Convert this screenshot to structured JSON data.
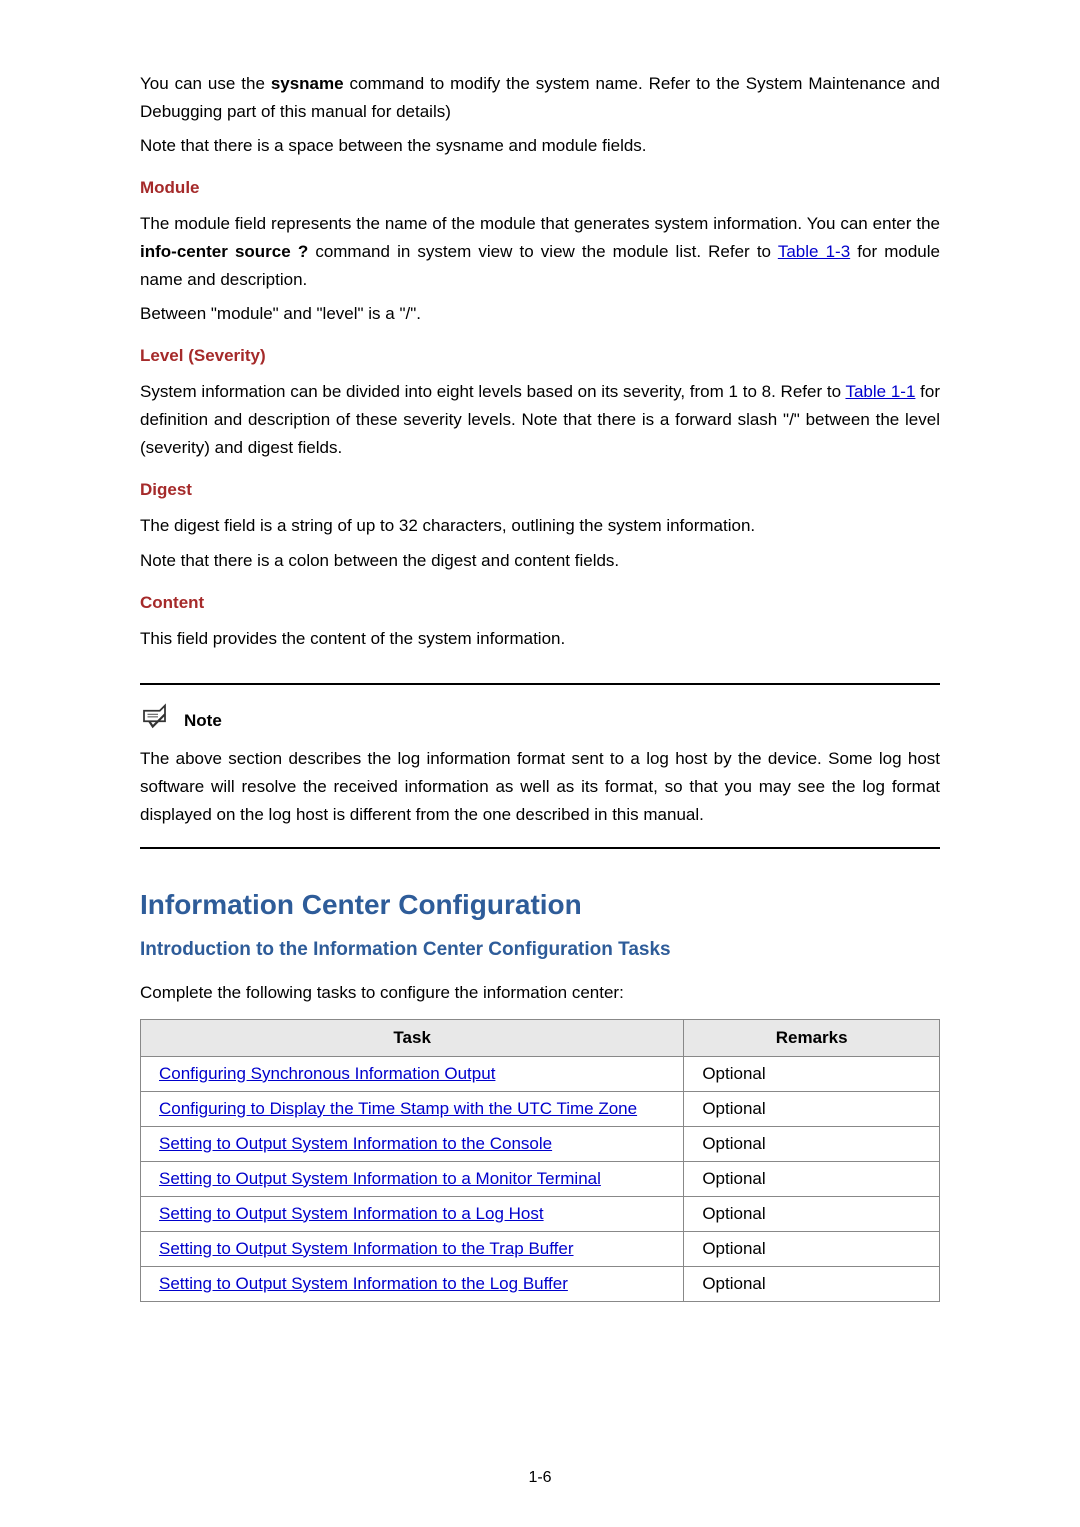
{
  "intro": {
    "p1_a": "You can use the ",
    "p1_b": "sysname",
    "p1_c": " command to modify the system name. Refer to the System Maintenance and Debugging part of this manual for details)",
    "p2": "Note that there is a space between the sysname and module fields."
  },
  "module": {
    "heading": "Module",
    "p1_a": "The module field represents the name of the module that generates system information. You can enter the ",
    "p1_b": "info-center source ?",
    "p1_c": " command in system view to view the module list. Refer to ",
    "p1_link": "Table 1-3",
    "p1_d": " for module name and description.",
    "p2": "Between \"module\" and \"level\" is a \"/\"."
  },
  "level": {
    "heading": "Level (Severity)",
    "p1_a": "System information can be divided into eight levels based on its severity, from 1 to 8. Refer to ",
    "p1_link": "Table 1-1",
    "p1_b": " for definition and description of these severity levels. Note that there is a forward slash \"/\" between the level (severity) and digest fields."
  },
  "digest": {
    "heading": "Digest",
    "p1": "The digest field is a string of up to 32 characters, outlining the system information.",
    "p2": "Note that there is a colon between the digest and content fields."
  },
  "content": {
    "heading": "Content",
    "p1": "This field provides the content of the system information."
  },
  "note": {
    "label": "Note",
    "text": "The above section describes the log information format sent to a log host by the device. Some log host software will resolve the received information as well as its format, so that you may see the log format displayed on the log host is different from the one described in this manual."
  },
  "config": {
    "h1": "Information Center Configuration",
    "h2": "Introduction to the Information Center Configuration Tasks",
    "intro": "Complete the following tasks to configure the information center:",
    "table": {
      "col_task": "Task",
      "col_remarks": "Remarks",
      "rows": [
        {
          "task": "Configuring Synchronous Information Output",
          "remark": "Optional"
        },
        {
          "task": "Configuring to Display the Time Stamp with the UTC Time Zone",
          "remark": "Optional"
        },
        {
          "task": "Setting to Output System Information to the Console",
          "remark": "Optional"
        },
        {
          "task": "Setting to Output System Information to a Monitor Terminal",
          "remark": "Optional"
        },
        {
          "task": "Setting to Output System Information to a Log Host",
          "remark": "Optional"
        },
        {
          "task": "Setting to Output System Information to the Trap Buffer",
          "remark": "Optional"
        },
        {
          "task": "Setting to Output System Information to the Log Buffer",
          "remark": "Optional"
        }
      ]
    }
  },
  "page_num": "1-6",
  "colors": {
    "heading": "#a52a2a",
    "title": "#2e5c99",
    "link": "#0000cc",
    "divider": "#000000",
    "th_bg": "#e8e8e8",
    "border": "#888888"
  }
}
